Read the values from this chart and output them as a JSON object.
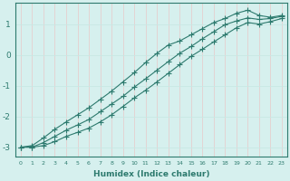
{
  "xlabel": "Humidex (Indice chaleur)",
  "x": [
    0,
    1,
    2,
    3,
    4,
    5,
    6,
    7,
    8,
    9,
    10,
    11,
    12,
    13,
    14,
    15,
    16,
    17,
    18,
    19,
    20,
    21,
    22,
    23
  ],
  "y_mean": [
    -3.0,
    -3.0,
    -2.85,
    -2.65,
    -2.45,
    -2.28,
    -2.1,
    -1.85,
    -1.6,
    -1.35,
    -1.05,
    -0.78,
    -0.5,
    -0.22,
    0.05,
    0.27,
    0.52,
    0.75,
    0.98,
    1.1,
    1.2,
    1.15,
    1.18,
    1.25
  ],
  "y_min": [
    -3.0,
    -3.0,
    -2.95,
    -2.82,
    -2.65,
    -2.52,
    -2.38,
    -2.18,
    -1.95,
    -1.68,
    -1.4,
    -1.15,
    -0.88,
    -0.6,
    -0.32,
    -0.05,
    0.18,
    0.42,
    0.65,
    0.88,
    1.05,
    1.0,
    1.08,
    1.18
  ],
  "y_max": [
    -3.0,
    -2.95,
    -2.7,
    -2.42,
    -2.18,
    -1.95,
    -1.72,
    -1.45,
    -1.18,
    -0.88,
    -0.58,
    -0.25,
    0.05,
    0.32,
    0.45,
    0.65,
    0.85,
    1.05,
    1.18,
    1.35,
    1.45,
    1.28,
    1.22,
    1.28
  ],
  "line_color": "#2d7a6e",
  "bg_color": "#d6f0ee",
  "grid_color_v": "#e8c8c8",
  "grid_color_h": "#c8e8e4",
  "xlim": [
    -0.5,
    23.5
  ],
  "ylim": [
    -3.3,
    1.7
  ],
  "yticks": [
    -3,
    -2,
    -1,
    0,
    1
  ],
  "marker": "+",
  "markersize": 4,
  "linewidth": 0.8
}
